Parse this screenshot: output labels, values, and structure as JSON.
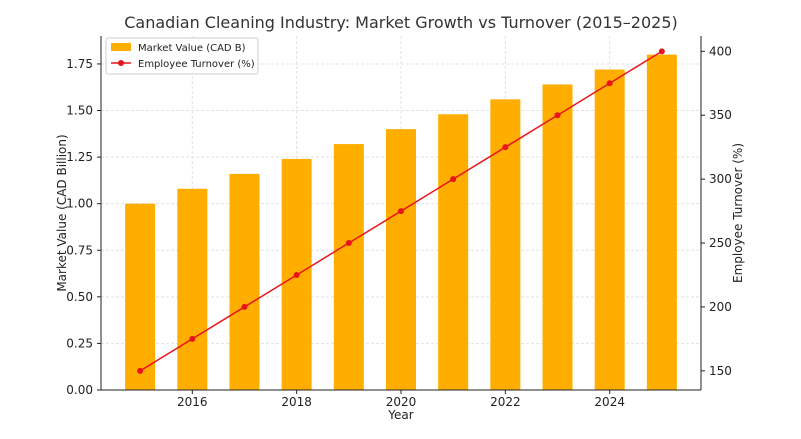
{
  "chart_data": {
    "type": "bar+line",
    "title": "Canadian Cleaning Industry: Market Growth vs Turnover (2015–2025)",
    "xlabel": "Year",
    "ylabel_left": "Market Value (CAD Billion)",
    "ylabel_right": "Employee Turnover (%)",
    "x": [
      2015,
      2016,
      2017,
      2018,
      2019,
      2020,
      2021,
      2022,
      2023,
      2024,
      2025
    ],
    "x_ticks": [
      2016,
      2018,
      2020,
      2022,
      2024
    ],
    "y_left_ticks": [
      "0.00",
      "0.25",
      "0.50",
      "0.75",
      "1.00",
      "1.25",
      "1.50",
      "1.75"
    ],
    "y_right_ticks": [
      "150",
      "200",
      "250",
      "300",
      "350",
      "400"
    ],
    "ylim_left": [
      0,
      1.9
    ],
    "ylim_right": [
      135,
      412
    ],
    "grid": true,
    "legend_placement": "top-left",
    "series": [
      {
        "name": "Market Value (CAD B)",
        "type": "bar",
        "axis": "left",
        "color": "#FFAE00",
        "values": [
          1.0,
          1.08,
          1.16,
          1.24,
          1.32,
          1.4,
          1.48,
          1.56,
          1.64,
          1.72,
          1.8
        ]
      },
      {
        "name": "Employee Turnover (%)",
        "type": "line",
        "axis": "right",
        "color": "#E8141B",
        "values": [
          150,
          175,
          200,
          225,
          250,
          275,
          300,
          325,
          350,
          375,
          400
        ]
      }
    ]
  }
}
